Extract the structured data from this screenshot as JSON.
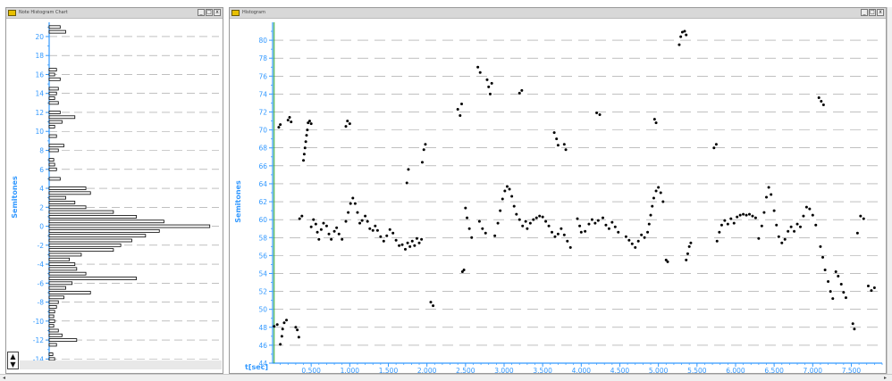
{
  "windows": {
    "left_title": "Note Histogram Chart",
    "right_title": "Histogram",
    "buttons": [
      "_",
      "□",
      "x"
    ]
  },
  "colors": {
    "axis": "#3399ff",
    "grid": "#9a9a9a",
    "points": "#000000",
    "bars": "#000000",
    "playhead": "#33aa33"
  },
  "icons": {
    "stepper_up": "▲",
    "stepper_down": "▼",
    "scroll_left": "◂",
    "scroll_right": "▸"
  },
  "chart_data": [
    {
      "type": "bar",
      "orientation": "horizontal",
      "ylabel": "Semitones",
      "ylim": [
        -15,
        21.5
      ],
      "yticks": [
        -14,
        -12,
        -10,
        -8,
        -6,
        -4,
        -2,
        0,
        2,
        4,
        6,
        8,
        10,
        12,
        14,
        16,
        18,
        20
      ],
      "grid": true,
      "categories": [
        -14.5,
        -14,
        -13.5,
        -12.5,
        -12,
        -11.5,
        -11,
        -10.5,
        -10,
        -9.5,
        -9,
        -8.5,
        -8,
        -7.5,
        -7,
        -6.5,
        -6,
        -5.5,
        -5,
        -4.5,
        -4,
        -3.5,
        -3,
        -2.5,
        -2,
        -1.5,
        -1,
        -0.5,
        0,
        0.5,
        1,
        1.5,
        2,
        2.5,
        3,
        3.5,
        4,
        5,
        6,
        6.5,
        7,
        8,
        8.5,
        9.5,
        10.5,
        11,
        11.5,
        12,
        13,
        13.5,
        14,
        14.5,
        15.5,
        16,
        16.5,
        20.5,
        21
      ],
      "values": [
        5,
        6,
        4,
        8,
        30,
        14,
        10,
        5,
        6,
        5,
        6,
        8,
        10,
        16,
        45,
        18,
        25,
        95,
        40,
        30,
        28,
        22,
        35,
        70,
        78,
        90,
        105,
        120,
        175,
        125,
        95,
        70,
        40,
        28,
        18,
        45,
        40,
        12,
        8,
        6,
        5,
        10,
        16,
        8,
        6,
        14,
        28,
        12,
        10,
        6,
        8,
        10,
        12,
        6,
        8,
        18,
        12
      ]
    },
    {
      "type": "scatter",
      "ylabel": "Semitones",
      "xlabel": "t[sec]",
      "xlim": [
        0,
        7.9
      ],
      "ylim": [
        44,
        82
      ],
      "xtick_labels": [
        "0.500",
        "1.000",
        "1.500",
        "2.000",
        "2.500",
        "3.000",
        "3.500",
        "4.000",
        "4.500",
        "5.000",
        "5.500",
        "6.000",
        "6.500",
        "7.000",
        "7.500"
      ],
      "xticks": [
        0.5,
        1.0,
        1.5,
        2.0,
        2.5,
        3.0,
        3.5,
        4.0,
        4.5,
        5.0,
        5.5,
        6.0,
        6.5,
        7.0,
        7.5
      ],
      "yticks": [
        44,
        46,
        48,
        50,
        52,
        54,
        56,
        58,
        60,
        62,
        64,
        66,
        68,
        70,
        72,
        74,
        76,
        78,
        80
      ],
      "grid": true,
      "points": [
        [
          0.02,
          48.1
        ],
        [
          0.06,
          48.3
        ],
        [
          0.08,
          70.3
        ],
        [
          0.1,
          70.6
        ],
        [
          0.1,
          46.1
        ],
        [
          0.12,
          47.0
        ],
        [
          0.13,
          47.8
        ],
        [
          0.15,
          48.5
        ],
        [
          0.18,
          48.8
        ],
        [
          0.2,
          71.1
        ],
        [
          0.22,
          71.4
        ],
        [
          0.24,
          70.9
        ],
        [
          0.3,
          48.0
        ],
        [
          0.32,
          47.7
        ],
        [
          0.34,
          46.9
        ],
        [
          0.35,
          60.1
        ],
        [
          0.38,
          60.4
        ],
        [
          0.4,
          66.6
        ],
        [
          0.41,
          67.3
        ],
        [
          0.42,
          68.0
        ],
        [
          0.43,
          68.7
        ],
        [
          0.44,
          69.4
        ],
        [
          0.45,
          70.0
        ],
        [
          0.46,
          70.8
        ],
        [
          0.48,
          71.0
        ],
        [
          0.5,
          70.7
        ],
        [
          0.5,
          59.2
        ],
        [
          0.53,
          60.0
        ],
        [
          0.56,
          59.5
        ],
        [
          0.58,
          58.6
        ],
        [
          0.6,
          57.8
        ],
        [
          0.63,
          58.9
        ],
        [
          0.66,
          59.6
        ],
        [
          0.7,
          59.3
        ],
        [
          0.73,
          58.4
        ],
        [
          0.76,
          57.8
        ],
        [
          0.8,
          58.7
        ],
        [
          0.83,
          59.1
        ],
        [
          0.86,
          58.4
        ],
        [
          0.9,
          57.8
        ],
        [
          0.95,
          70.4
        ],
        [
          0.97,
          71.0
        ],
        [
          1.0,
          70.7
        ],
        [
          0.95,
          59.8
        ],
        [
          0.98,
          60.8
        ],
        [
          1.01,
          61.8
        ],
        [
          1.04,
          62.4
        ],
        [
          1.07,
          61.8
        ],
        [
          1.1,
          60.8
        ],
        [
          1.13,
          59.6
        ],
        [
          1.16,
          59.9
        ],
        [
          1.2,
          60.4
        ],
        [
          1.23,
          59.8
        ],
        [
          1.26,
          59.0
        ],
        [
          1.3,
          58.8
        ],
        [
          1.33,
          59.3
        ],
        [
          1.36,
          58.8
        ],
        [
          1.4,
          58.1
        ],
        [
          1.44,
          57.6
        ],
        [
          1.48,
          58.2
        ],
        [
          1.52,
          58.9
        ],
        [
          1.56,
          58.5
        ],
        [
          1.6,
          57.7
        ],
        [
          1.64,
          57.1
        ],
        [
          1.68,
          57.2
        ],
        [
          1.72,
          56.7
        ],
        [
          1.75,
          57.4
        ],
        [
          1.78,
          57.0
        ],
        [
          1.81,
          57.6
        ],
        [
          1.84,
          57.1
        ],
        [
          1.87,
          57.9
        ],
        [
          1.9,
          57.4
        ],
        [
          1.93,
          57.8
        ],
        [
          1.74,
          64.1
        ],
        [
          1.76,
          65.6
        ],
        [
          1.94,
          66.4
        ],
        [
          1.96,
          67.8
        ],
        [
          1.98,
          68.4
        ],
        [
          2.05,
          50.8
        ],
        [
          2.08,
          50.4
        ],
        [
          2.4,
          72.3
        ],
        [
          2.43,
          71.6
        ],
        [
          2.45,
          72.9
        ],
        [
          2.46,
          54.2
        ],
        [
          2.48,
          54.4
        ],
        [
          2.5,
          61.3
        ],
        [
          2.52,
          60.2
        ],
        [
          2.55,
          59.0
        ],
        [
          2.58,
          58.0
        ],
        [
          2.68,
          59.8
        ],
        [
          2.72,
          59.0
        ],
        [
          2.76,
          58.5
        ],
        [
          2.66,
          77.0
        ],
        [
          2.69,
          76.4
        ],
        [
          2.78,
          75.6
        ],
        [
          2.8,
          74.8
        ],
        [
          2.82,
          74.0
        ],
        [
          2.84,
          75.2
        ],
        [
          2.88,
          58.2
        ],
        [
          2.92,
          59.6
        ],
        [
          2.95,
          61.0
        ],
        [
          2.98,
          62.3
        ],
        [
          3.01,
          63.2
        ],
        [
          3.04,
          63.7
        ],
        [
          3.07,
          63.4
        ],
        [
          3.1,
          62.6
        ],
        [
          3.13,
          61.5
        ],
        [
          3.16,
          60.6
        ],
        [
          3.2,
          60.0
        ],
        [
          3.24,
          59.3
        ],
        [
          3.28,
          59.8
        ],
        [
          3.2,
          74.1
        ],
        [
          3.23,
          74.4
        ],
        [
          3.3,
          59.0
        ],
        [
          3.34,
          59.6
        ],
        [
          3.38,
          60.0
        ],
        [
          3.42,
          60.2
        ],
        [
          3.46,
          60.4
        ],
        [
          3.5,
          60.3
        ],
        [
          3.54,
          59.8
        ],
        [
          3.58,
          59.3
        ],
        [
          3.62,
          58.6
        ],
        [
          3.66,
          58.1
        ],
        [
          3.7,
          58.4
        ],
        [
          3.74,
          59.0
        ],
        [
          3.78,
          58.3
        ],
        [
          3.82,
          57.6
        ],
        [
          3.86,
          56.9
        ],
        [
          3.65,
          69.7
        ],
        [
          3.68,
          69.0
        ],
        [
          3.7,
          68.3
        ],
        [
          3.78,
          68.4
        ],
        [
          3.8,
          67.8
        ],
        [
          3.95,
          60.1
        ],
        [
          3.98,
          59.3
        ],
        [
          4.0,
          58.6
        ],
        [
          4.05,
          58.7
        ],
        [
          4.1,
          59.5
        ],
        [
          4.14,
          60.0
        ],
        [
          4.18,
          59.6
        ],
        [
          4.22,
          59.9
        ],
        [
          4.2,
          71.9
        ],
        [
          4.24,
          71.7
        ],
        [
          4.28,
          60.2
        ],
        [
          4.32,
          59.4
        ],
        [
          4.36,
          59.0
        ],
        [
          4.4,
          59.7
        ],
        [
          4.44,
          59.2
        ],
        [
          4.48,
          58.6
        ],
        [
          4.58,
          58.1
        ],
        [
          4.62,
          57.7
        ],
        [
          4.66,
          57.3
        ],
        [
          4.7,
          56.9
        ],
        [
          4.74,
          57.6
        ],
        [
          4.78,
          58.3
        ],
        [
          4.82,
          58.0
        ],
        [
          4.86,
          58.6
        ],
        [
          4.88,
          59.5
        ],
        [
          4.9,
          60.5
        ],
        [
          4.92,
          61.5
        ],
        [
          4.94,
          62.4
        ],
        [
          4.97,
          63.2
        ],
        [
          5.0,
          63.6
        ],
        [
          5.03,
          63.0
        ],
        [
          5.06,
          62.0
        ],
        [
          5.1,
          55.5
        ],
        [
          5.12,
          55.3
        ],
        [
          4.95,
          71.2
        ],
        [
          4.97,
          70.8
        ],
        [
          5.27,
          79.5
        ],
        [
          5.29,
          80.4
        ],
        [
          5.31,
          80.9
        ],
        [
          5.34,
          81.0
        ],
        [
          5.36,
          80.6
        ],
        [
          5.36,
          55.5
        ],
        [
          5.38,
          56.2
        ],
        [
          5.4,
          57.0
        ],
        [
          5.42,
          57.4
        ],
        [
          5.72,
          68.0
        ],
        [
          5.75,
          68.4
        ],
        [
          5.76,
          57.6
        ],
        [
          5.79,
          58.6
        ],
        [
          5.82,
          59.4
        ],
        [
          5.86,
          59.9
        ],
        [
          5.9,
          59.5
        ],
        [
          5.94,
          60.1
        ],
        [
          5.98,
          59.6
        ],
        [
          6.02,
          60.3
        ],
        [
          6.06,
          60.5
        ],
        [
          6.1,
          60.6
        ],
        [
          6.14,
          60.5
        ],
        [
          6.18,
          60.6
        ],
        [
          6.22,
          60.4
        ],
        [
          6.26,
          60.2
        ],
        [
          6.3,
          57.9
        ],
        [
          6.34,
          59.3
        ],
        [
          6.37,
          60.8
        ],
        [
          6.4,
          62.5
        ],
        [
          6.43,
          63.6
        ],
        [
          6.46,
          62.8
        ],
        [
          6.5,
          61.0
        ],
        [
          6.53,
          59.4
        ],
        [
          6.56,
          58.1
        ],
        [
          6.6,
          57.4
        ],
        [
          6.64,
          57.8
        ],
        [
          6.68,
          58.7
        ],
        [
          6.72,
          59.2
        ],
        [
          6.76,
          58.7
        ],
        [
          6.8,
          59.5
        ],
        [
          6.84,
          59.2
        ],
        [
          6.88,
          60.4
        ],
        [
          6.92,
          61.4
        ],
        [
          6.96,
          61.2
        ],
        [
          7.0,
          60.5
        ],
        [
          7.04,
          59.4
        ],
        [
          7.08,
          73.6
        ],
        [
          7.11,
          73.2
        ],
        [
          7.14,
          72.8
        ],
        [
          7.1,
          57.0
        ],
        [
          7.13,
          55.8
        ],
        [
          7.16,
          54.4
        ],
        [
          7.2,
          53.1
        ],
        [
          7.23,
          52.0
        ],
        [
          7.26,
          51.2
        ],
        [
          7.3,
          54.2
        ],
        [
          7.33,
          53.7
        ],
        [
          7.37,
          52.8
        ],
        [
          7.4,
          51.9
        ],
        [
          7.43,
          51.3
        ],
        [
          7.52,
          48.4
        ],
        [
          7.54,
          47.8
        ],
        [
          7.58,
          58.5
        ],
        [
          7.62,
          60.4
        ],
        [
          7.66,
          60.1
        ],
        [
          7.72,
          52.6
        ],
        [
          7.76,
          52.1
        ],
        [
          7.8,
          52.4
        ]
      ]
    }
  ]
}
